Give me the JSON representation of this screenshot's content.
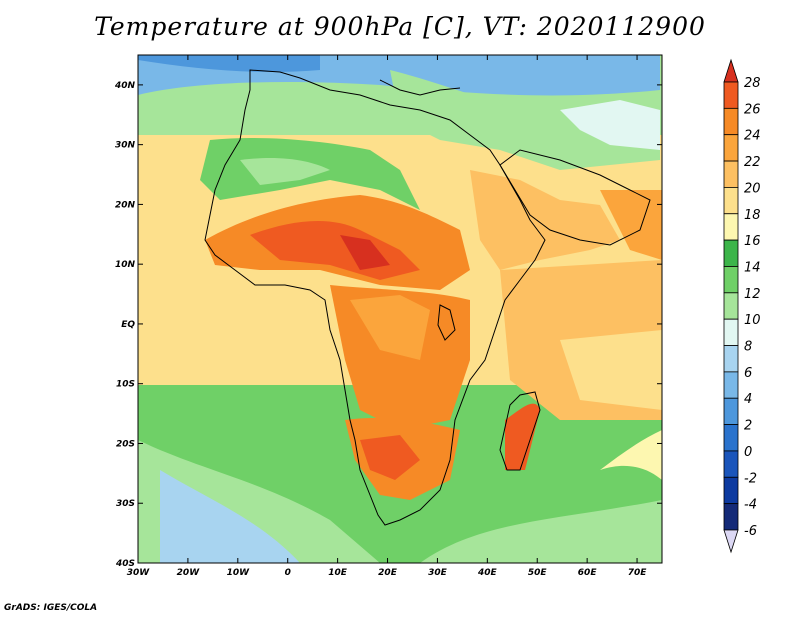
{
  "title": "Temperature at 900hPa [C], VT: 2020112900",
  "credit": "GrADS: IGES/COLA",
  "map": {
    "lon_ticks": [
      "30W",
      "20W",
      "10W",
      "0",
      "10E",
      "20E",
      "30E",
      "40E",
      "50E",
      "60E",
      "70E"
    ],
    "lat_ticks": [
      "40N",
      "30N",
      "20N",
      "10N",
      "EQ",
      "10S",
      "20S",
      "30S",
      "40S"
    ],
    "lon_range": [
      -30,
      75
    ],
    "lat_range": [
      -40,
      45
    ]
  },
  "colorbar": {
    "labels": [
      "28",
      "26",
      "24",
      "22",
      "20",
      "18",
      "16",
      "14",
      "12",
      "10",
      "8",
      "6",
      "4",
      "2",
      "0",
      "-2",
      "-4",
      "-6"
    ],
    "colors": [
      "#d7301f",
      "#ef5a21",
      "#f68a26",
      "#fba53c",
      "#fdc062",
      "#fde08c",
      "#fdf7b0",
      "#3cb54a",
      "#6fd067",
      "#a6e59a",
      "#e2f7f2",
      "#a8d4f0",
      "#79b8e8",
      "#4d97dc",
      "#2a73cd",
      "#1a55bb",
      "#0d3aa0",
      "#142a78",
      "#dcd8f4"
    ]
  }
}
